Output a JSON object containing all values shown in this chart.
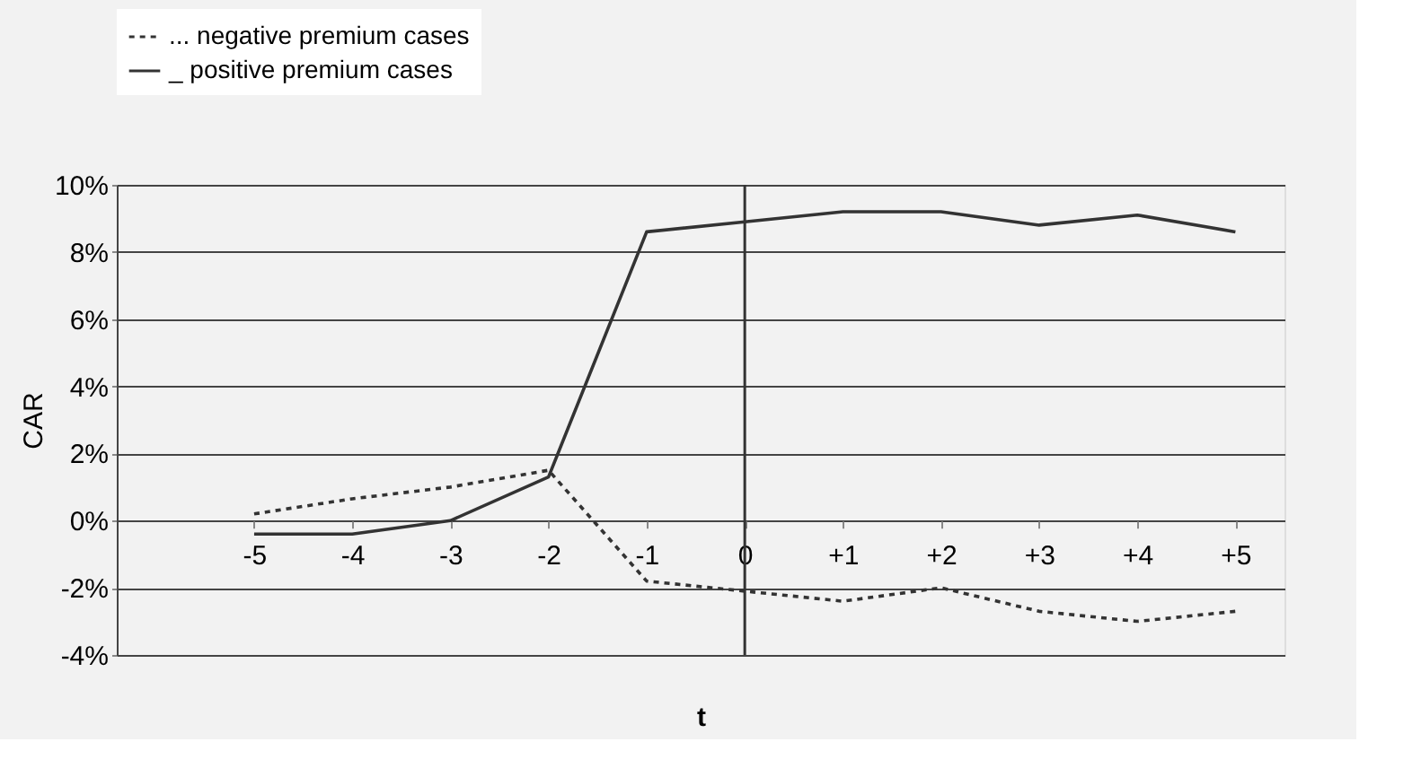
{
  "chart_data": {
    "type": "line",
    "ylabel": "CAR",
    "xlabel": "t",
    "categories": [
      "-5",
      "-4",
      "-3",
      "-2",
      "-1",
      "0",
      "+1",
      "+2",
      "+3",
      "+4",
      "+5"
    ],
    "series": [
      {
        "name": "... negative premium cases",
        "color": "#333333",
        "line_style": "dotted",
        "values": [
          0.2,
          0.65,
          1.0,
          1.5,
          -1.8,
          -2.1,
          -2.4,
          -2.0,
          -2.7,
          -3.0,
          -2.7
        ]
      },
      {
        "name": "_ positive premium cases",
        "color": "#333333",
        "line_style": "solid",
        "values": [
          -0.4,
          -0.4,
          0.0,
          1.3,
          8.6,
          8.9,
          9.2,
          9.2,
          8.8,
          9.1,
          8.6
        ]
      }
    ],
    "ylim": [
      -4,
      10
    ],
    "yticks": [
      {
        "value": -4,
        "label": "-4%"
      },
      {
        "value": -2,
        "label": "-2%"
      },
      {
        "value": 0,
        "label": "0%"
      },
      {
        "value": 2,
        "label": "2%"
      },
      {
        "value": 4,
        "label": "4%"
      },
      {
        "value": 6,
        "label": "6%"
      },
      {
        "value": 8,
        "label": "8%"
      },
      {
        "value": 10,
        "label": "10%"
      }
    ],
    "ref_lines": [
      {
        "axis": "x",
        "value": "0"
      }
    ],
    "grid": "y",
    "legend": "top left",
    "marker": "none"
  }
}
